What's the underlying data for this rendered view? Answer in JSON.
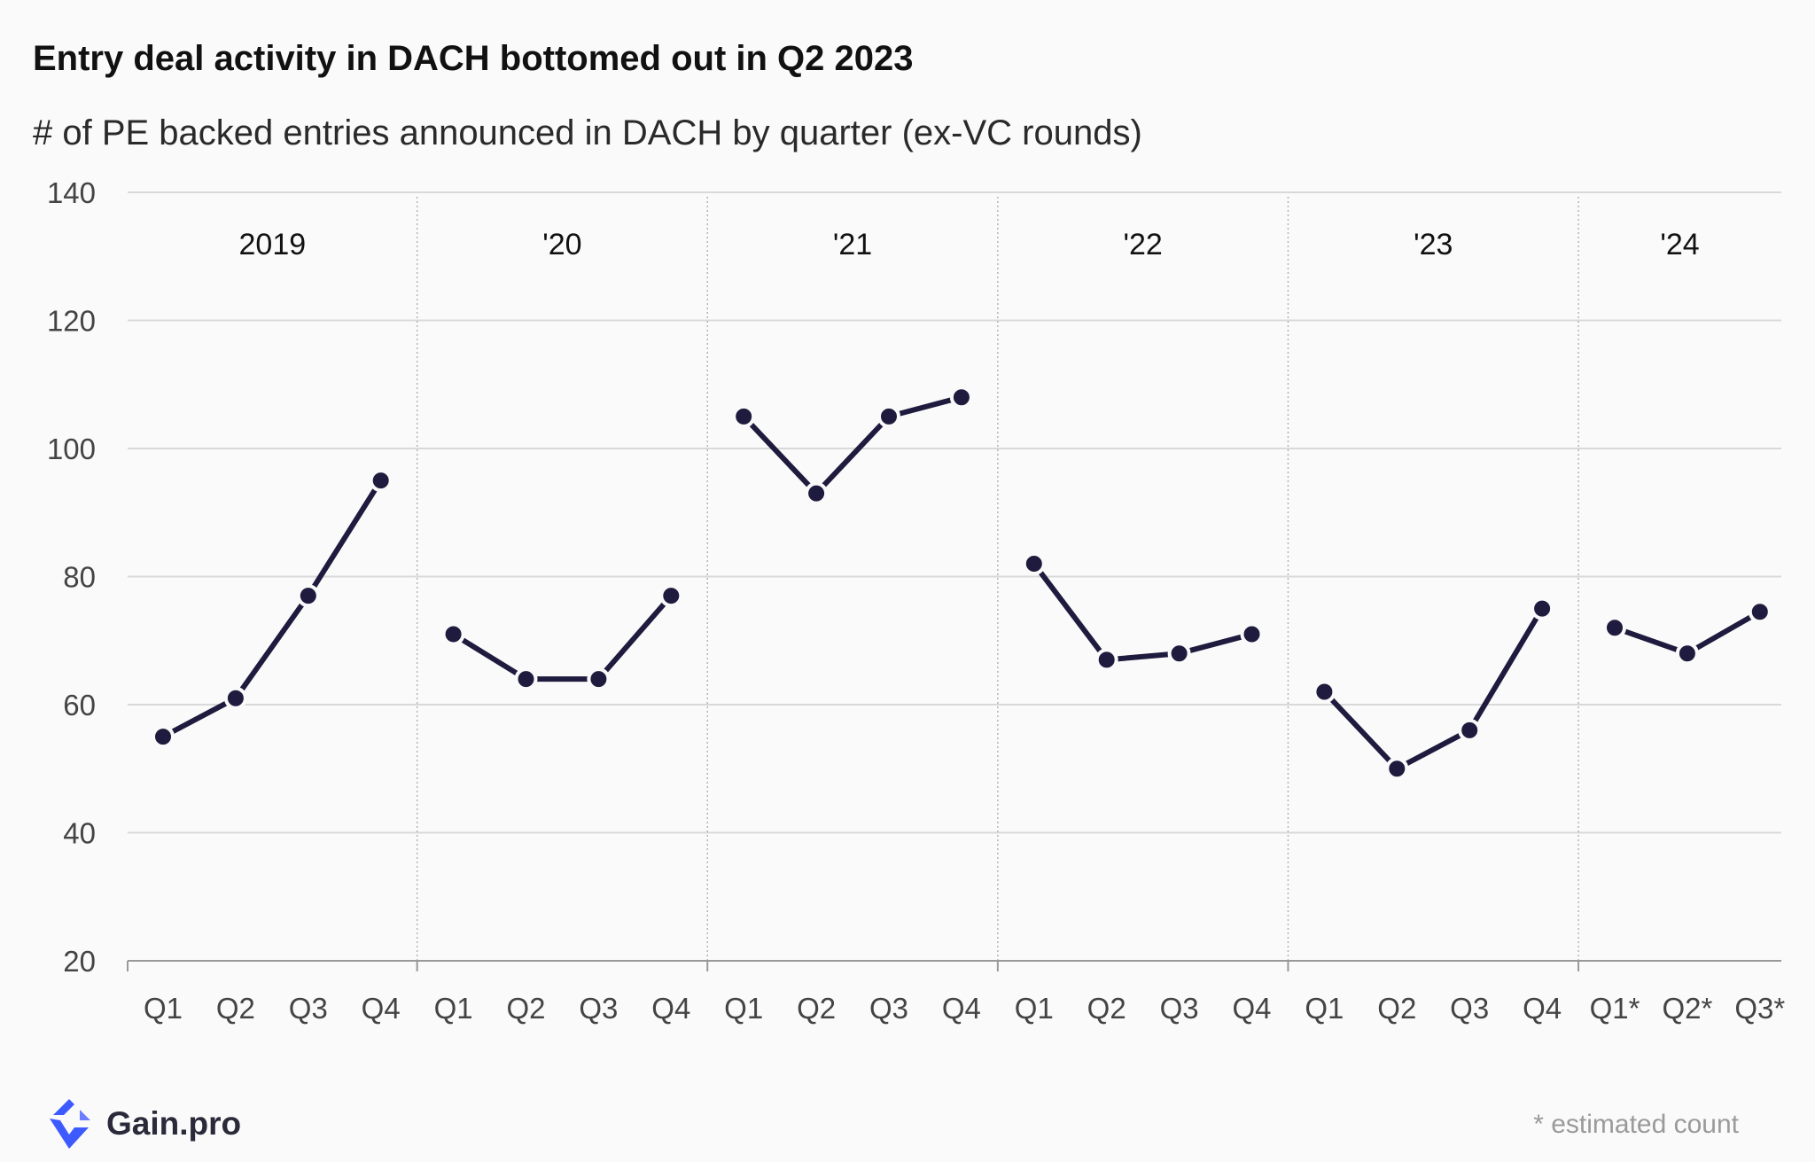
{
  "title": "Entry deal activity in DACH bottomed out in Q2 2023",
  "subtitle": "# of PE backed entries announced in DACH by quarter (ex-VC rounds)",
  "footnote": "* estimated count",
  "logo": {
    "text": "Gain.pro",
    "icon": "gain-pro-logo-icon",
    "color": "#3d5afe"
  },
  "colors": {
    "line": "#1e1b3e",
    "grid": "#d9d9d9",
    "separator": "#b5b5b5",
    "axis": "#999999"
  },
  "chart_data": {
    "type": "line",
    "title": "Entry deal activity in DACH bottomed out in Q2 2023",
    "subtitle": "# of PE backed entries announced in DACH by quarter (ex-VC rounds)",
    "xlabel": "",
    "ylabel": "",
    "ylim": [
      20,
      140
    ],
    "yticks": [
      20,
      40,
      60,
      80,
      100,
      120,
      140
    ],
    "grid": true,
    "legend": "none",
    "groups": [
      {
        "label": "2019",
        "categories": [
          "Q1",
          "Q2",
          "Q3",
          "Q4"
        ],
        "values": [
          55,
          61,
          77,
          95
        ]
      },
      {
        "label": "'20",
        "categories": [
          "Q1",
          "Q2",
          "Q3",
          "Q4"
        ],
        "values": [
          71,
          64,
          64,
          77
        ]
      },
      {
        "label": "'21",
        "categories": [
          "Q1",
          "Q2",
          "Q3",
          "Q4"
        ],
        "values": [
          105,
          93,
          105,
          108
        ]
      },
      {
        "label": "'22",
        "categories": [
          "Q1",
          "Q2",
          "Q3",
          "Q4"
        ],
        "values": [
          82,
          67,
          68,
          71
        ]
      },
      {
        "label": "'23",
        "categories": [
          "Q1",
          "Q2",
          "Q3",
          "Q4"
        ],
        "values": [
          62,
          50,
          56,
          75
        ]
      },
      {
        "label": "'24",
        "categories": [
          "Q1*",
          "Q2*",
          "Q3*"
        ],
        "values": [
          72,
          68,
          74.5
        ]
      }
    ]
  }
}
